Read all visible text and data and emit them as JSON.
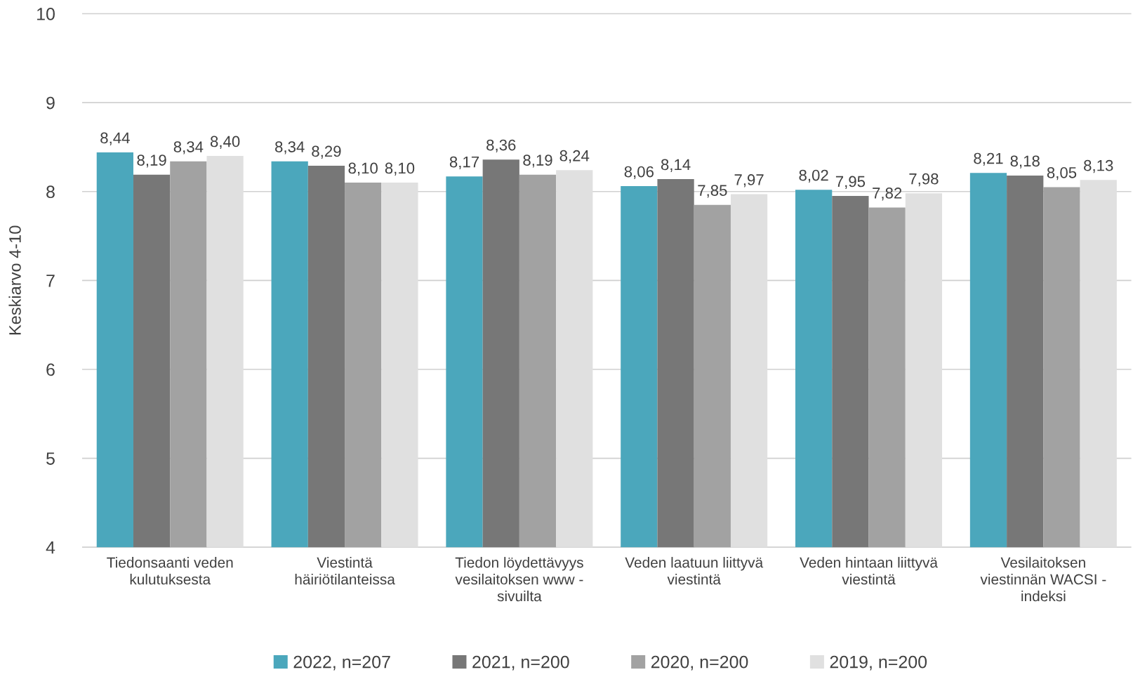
{
  "chart_data": {
    "type": "bar",
    "ylabel": "Keskiarvo 4-10",
    "categories": [
      "Tiedonsaanti veden\nkulutuksesta",
      "Viestintä\nhäiriötilanteissa",
      "Tiedon löydettävyys\nvesilaitoksen www -\nsivuilta",
      "Veden laatuun liittyvä\nviestintä",
      "Veden hintaan liittyvä\nviestintä",
      "Vesilaitoksen\nviestinnän WACSI -\nindeksi"
    ],
    "series": [
      {
        "name": "2022, n=207",
        "color": "#4ba7bc",
        "values": [
          8.44,
          8.34,
          8.17,
          8.06,
          8.02,
          8.21
        ],
        "value_labels": [
          "8,44",
          "8,34",
          "8,17",
          "8,06",
          "8,02",
          "8,21"
        ]
      },
      {
        "name": "2021, n=200",
        "color": "#777777",
        "values": [
          8.19,
          8.29,
          8.36,
          8.14,
          7.95,
          8.18
        ],
        "value_labels": [
          "8,19",
          "8,29",
          "8,36",
          "8,14",
          "7,95",
          "8,18"
        ]
      },
      {
        "name": "2020, n=200",
        "color": "#a2a2a2",
        "values": [
          8.34,
          8.1,
          8.19,
          7.85,
          7.82,
          8.05
        ],
        "value_labels": [
          "8,34",
          "8,10",
          "8,19",
          "7,85",
          "7,82",
          "8,05"
        ]
      },
      {
        "name": "2019, n=200",
        "color": "#e0e0e0",
        "values": [
          8.4,
          8.1,
          8.24,
          7.97,
          7.98,
          8.13
        ],
        "value_labels": [
          "8,40",
          "8,10",
          "8,24",
          "7,97",
          "7,98",
          "8,13"
        ]
      }
    ],
    "ylim": [
      4,
      10
    ],
    "yticks": [
      4,
      5,
      6,
      7,
      8,
      9,
      10
    ],
    "grid": "y",
    "legend": "bottom"
  }
}
